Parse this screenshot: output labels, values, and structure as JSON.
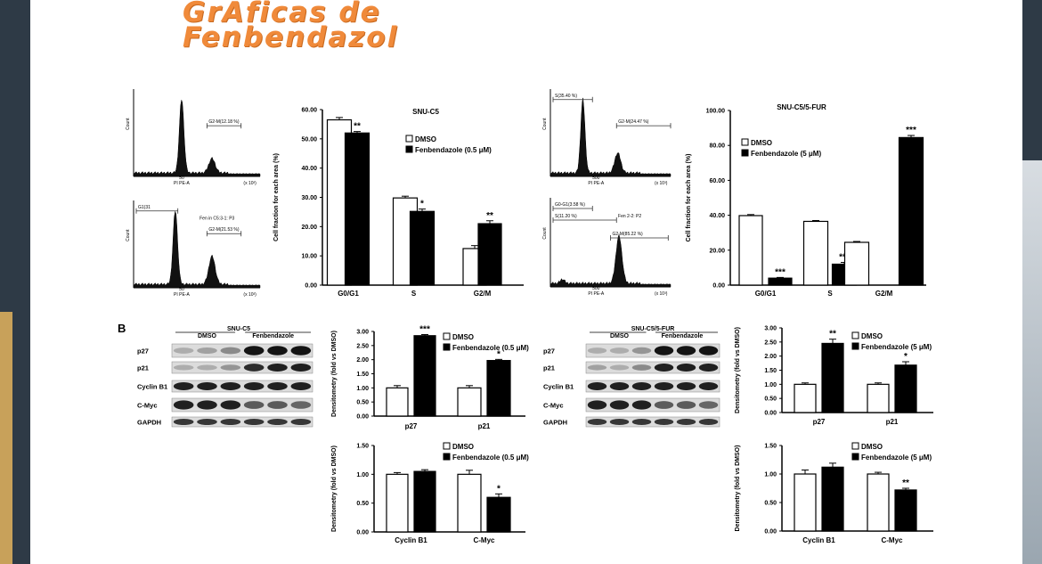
{
  "page": {
    "title_line1": "GrAficas de",
    "title_line2": "Fenbendazol"
  },
  "colors": {
    "title": "#f08a3a",
    "frame": "#2e3a46",
    "accent_gold": "#c8a15a",
    "dmso_bar": "#ffffff",
    "fenben_bar": "#000000"
  },
  "panel_b_label": "B",
  "histograms": [
    {
      "gates": [
        "G2-M(12.18 %)"
      ],
      "xlabel": "PI PE-A",
      "xunit": "(x 10³)",
      "ylabel": "Count",
      "tick_mid": "50"
    },
    {
      "gates": [
        "G1(31",
        "G2-M(21.53 %)"
      ],
      "title": "Fen in C5:3-1: P3",
      "xlabel": "PI PE-A",
      "xunit": "(x 10³)",
      "ylabel": "Count",
      "tick_mid": "50"
    },
    {
      "gates": [
        "S(35.40 %)",
        "G2-M(24.47 %)"
      ],
      "xlabel": "PI PE-A",
      "xunit": "(x 10³)",
      "ylabel": "Count",
      "tick_mid": "500"
    },
    {
      "gates": [
        "G0-G1(3.58 %)",
        "S(11.20 %)",
        "G2-M(85.22 %)"
      ],
      "title": "Fen 2-2: P2",
      "xlabel": "PI PE-A",
      "xunit": "(x 10³)",
      "ylabel": "Count",
      "tick_mid": "500"
    }
  ],
  "blots": [
    {
      "title": "SNU-C5",
      "groups": [
        "DMSO",
        "Fenbendazole"
      ],
      "rows": [
        "p27",
        "p21",
        "Cyclin B1",
        "C-Myc",
        "GAPDH"
      ]
    },
    {
      "title": "SNU-C5/5-FUR",
      "groups": [
        "DMSO",
        "Fenbendazole"
      ],
      "rows": [
        "p27",
        "p21",
        "Cyclin B1",
        "C-Myc",
        "GAPDH"
      ]
    }
  ],
  "chart_data": [
    {
      "id": "c1",
      "type": "bar",
      "title": "SNU-C5",
      "ylabel": "Cell fraction for each area (%)",
      "ylim": [
        0,
        60
      ],
      "yticks": [
        "0.00",
        "10.00",
        "20.00",
        "30.00",
        "40.00",
        "50.00",
        "60.00"
      ],
      "categories": [
        "G0/G1",
        "S",
        "G2/M"
      ],
      "series": [
        {
          "name": "DMSO",
          "values": [
            56.5,
            29.8,
            12.5
          ],
          "err": [
            0.8,
            0.6,
            1.0
          ]
        },
        {
          "name": "Fenbendazole (0.5 μM)",
          "values": [
            52.0,
            25.2,
            21.0
          ],
          "err": [
            0.5,
            0.8,
            1.0
          ]
        }
      ],
      "sig": [
        "**",
        "*",
        "**"
      ],
      "legend": "top-right"
    },
    {
      "id": "c2",
      "type": "bar",
      "title": "SNU-C5/5-FUR",
      "ylabel": "Cell fraction for each area (%)",
      "ylim": [
        0,
        100
      ],
      "yticks": [
        "0.00",
        "20.00",
        "40.00",
        "60.00",
        "80.00",
        "100.00"
      ],
      "categories": [
        "G0/G1",
        "S",
        "G2/M"
      ],
      "series": [
        {
          "name": "DMSO",
          "values": [
            39.8,
            36.5,
            24.5
          ],
          "err": [
            0.6,
            0.5,
            0.5
          ]
        },
        {
          "name": "Fenbendazole (5 μM)",
          "values": [
            4.0,
            12.0,
            84.5
          ],
          "err": [
            0.4,
            1.0,
            1.2
          ]
        }
      ],
      "sig": [
        "***",
        "***",
        "***"
      ],
      "legend": "top-right"
    },
    {
      "id": "c3",
      "type": "bar",
      "ylabel": "Densitometry (fold vs DMSO)",
      "ylim": [
        0,
        3
      ],
      "yticks": [
        "0.00",
        "0.50",
        "1.00",
        "1.50",
        "2.00",
        "2.50",
        "3.00"
      ],
      "categories": [
        "p27",
        "p21"
      ],
      "series": [
        {
          "name": "DMSO",
          "values": [
            1.0,
            1.0
          ],
          "err": [
            0.08,
            0.08
          ]
        },
        {
          "name": "Fenbendazole (0.5 μM)",
          "values": [
            2.85,
            1.97
          ],
          "err": [
            0.04,
            0.04
          ]
        }
      ],
      "sig": [
        "***",
        "*"
      ],
      "legend": "top-right"
    },
    {
      "id": "c4",
      "type": "bar",
      "ylabel": "Densitometry (fold vs DMSO)",
      "ylim": [
        0,
        1.5
      ],
      "yticks": [
        "0.00",
        "0.50",
        "1.00",
        "1.50"
      ],
      "categories": [
        "Cyclin B1",
        "C-Myc"
      ],
      "series": [
        {
          "name": "DMSO",
          "values": [
            1.0,
            1.0
          ],
          "err": [
            0.03,
            0.07
          ]
        },
        {
          "name": "Fenbendazole (0.5 μM)",
          "values": [
            1.05,
            0.6
          ],
          "err": [
            0.03,
            0.06
          ]
        }
      ],
      "sig": [
        "",
        "*"
      ],
      "legend": "top-right"
    },
    {
      "id": "c5",
      "type": "bar",
      "ylabel": "Densitometry (fold vs DMSO)",
      "ylim": [
        0,
        3
      ],
      "yticks": [
        "0.00",
        "0.50",
        "1.00",
        "1.50",
        "2.00",
        "2.50",
        "3.00"
      ],
      "categories": [
        "p27",
        "p21"
      ],
      "series": [
        {
          "name": "DMSO",
          "values": [
            1.0,
            1.0
          ],
          "err": [
            0.05,
            0.05
          ]
        },
        {
          "name": "Fenbendazole (5 μM)",
          "values": [
            2.45,
            1.68
          ],
          "err": [
            0.15,
            0.12
          ]
        }
      ],
      "sig": [
        "**",
        "*"
      ],
      "legend": "top-right"
    },
    {
      "id": "c6",
      "type": "bar",
      "ylabel": "Densitometry (fold vs DMSO)",
      "ylim": [
        0,
        1.5
      ],
      "yticks": [
        "0.00",
        "0.50",
        "1.00",
        "1.50"
      ],
      "categories": [
        "Cyclin B1",
        "C-Myc"
      ],
      "series": [
        {
          "name": "DMSO",
          "values": [
            1.0,
            1.0
          ],
          "err": [
            0.07,
            0.03
          ]
        },
        {
          "name": "Fenbendazole (5 μM)",
          "values": [
            1.12,
            0.72
          ],
          "err": [
            0.07,
            0.03
          ]
        }
      ],
      "sig": [
        "",
        "**"
      ],
      "legend": "top-right"
    }
  ]
}
